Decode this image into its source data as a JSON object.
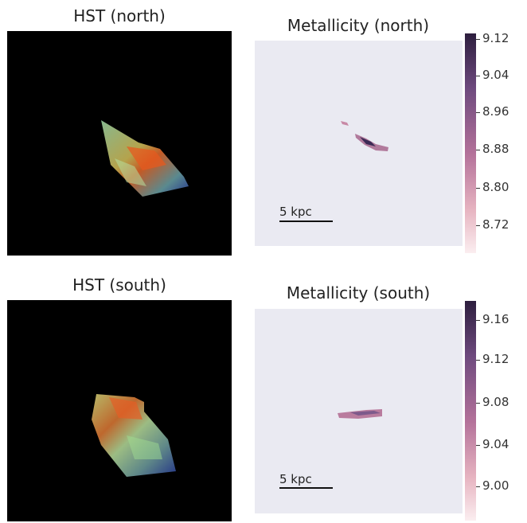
{
  "panels": {
    "hst_north": {
      "title": "HST (north)"
    },
    "met_north": {
      "title": "Metallicity (north)",
      "scalebar": "5 kpc"
    },
    "hst_south": {
      "title": "HST (south)"
    },
    "met_south": {
      "title": "Metallicity (south)",
      "scalebar": "5 kpc"
    }
  },
  "colorbars": {
    "north": {
      "ticks": [
        "9.12",
        "9.04",
        "8.96",
        "8.88",
        "8.80",
        "8.72"
      ]
    },
    "south": {
      "ticks": [
        "9.16",
        "9.12",
        "9.08",
        "9.04",
        "9.00"
      ]
    }
  },
  "colors": {
    "cbar_top": "#2d1e3e",
    "cbar_mid": "#a4668e",
    "cbar_bottom": "#fae9ec",
    "axes_bg": "#eaeaf2"
  }
}
